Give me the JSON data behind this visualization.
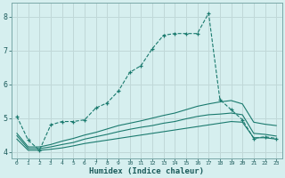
{
  "xlabel": "Humidex (Indice chaleur)",
  "background_color": "#d6efef",
  "grid_color": "#c0d8d8",
  "line_color": "#1a7a6e",
  "xlim": [
    -0.5,
    23.5
  ],
  "ylim": [
    3.8,
    8.4
  ],
  "xticks": [
    0,
    1,
    2,
    3,
    4,
    5,
    6,
    7,
    8,
    9,
    10,
    11,
    12,
    13,
    14,
    15,
    16,
    17,
    18,
    19,
    20,
    21,
    22,
    23
  ],
  "yticks": [
    4,
    5,
    6,
    7,
    8
  ],
  "series": [
    {
      "x": [
        0,
        1,
        2,
        3,
        4,
        5,
        6,
        7,
        8,
        9,
        10,
        11,
        12,
        13,
        14,
        15,
        16,
        17,
        18,
        19,
        20,
        21,
        22,
        23
      ],
      "y": [
        5.05,
        4.35,
        4.05,
        4.8,
        4.9,
        4.9,
        4.95,
        5.3,
        5.45,
        5.8,
        6.35,
        6.55,
        7.05,
        7.45,
        7.5,
        7.5,
        7.5,
        8.1,
        5.55,
        5.25,
        4.95,
        4.4,
        4.45,
        4.4
      ],
      "marker": "+",
      "linestyle": "--"
    },
    {
      "x": [
        0,
        1,
        2,
        3,
        4,
        5,
        6,
        7,
        8,
        9,
        10,
        11,
        12,
        13,
        14,
        15,
        16,
        17,
        18,
        19,
        20,
        21,
        22,
        23
      ],
      "y": [
        4.38,
        4.05,
        4.05,
        4.08,
        4.12,
        4.18,
        4.25,
        4.3,
        4.35,
        4.4,
        4.45,
        4.5,
        4.55,
        4.6,
        4.65,
        4.7,
        4.75,
        4.8,
        4.85,
        4.9,
        4.88,
        4.42,
        4.42,
        4.38
      ],
      "marker": null,
      "linestyle": "-"
    },
    {
      "x": [
        0,
        1,
        2,
        3,
        4,
        5,
        6,
        7,
        8,
        9,
        10,
        11,
        12,
        13,
        14,
        15,
        16,
        17,
        18,
        19,
        20,
        21,
        22,
        23
      ],
      "y": [
        4.48,
        4.1,
        4.1,
        4.15,
        4.22,
        4.28,
        4.38,
        4.45,
        4.52,
        4.6,
        4.67,
        4.73,
        4.78,
        4.85,
        4.9,
        4.98,
        5.05,
        5.1,
        5.12,
        5.15,
        5.1,
        4.55,
        4.52,
        4.47
      ],
      "marker": null,
      "linestyle": "-"
    },
    {
      "x": [
        0,
        1,
        2,
        3,
        4,
        5,
        6,
        7,
        8,
        9,
        10,
        11,
        12,
        13,
        14,
        15,
        16,
        17,
        18,
        19,
        20,
        21,
        22,
        23
      ],
      "y": [
        4.55,
        4.15,
        4.15,
        4.22,
        4.32,
        4.4,
        4.5,
        4.58,
        4.68,
        4.78,
        4.85,
        4.92,
        5.0,
        5.08,
        5.15,
        5.25,
        5.35,
        5.42,
        5.48,
        5.52,
        5.42,
        4.88,
        4.82,
        4.78
      ],
      "marker": null,
      "linestyle": "-"
    }
  ]
}
